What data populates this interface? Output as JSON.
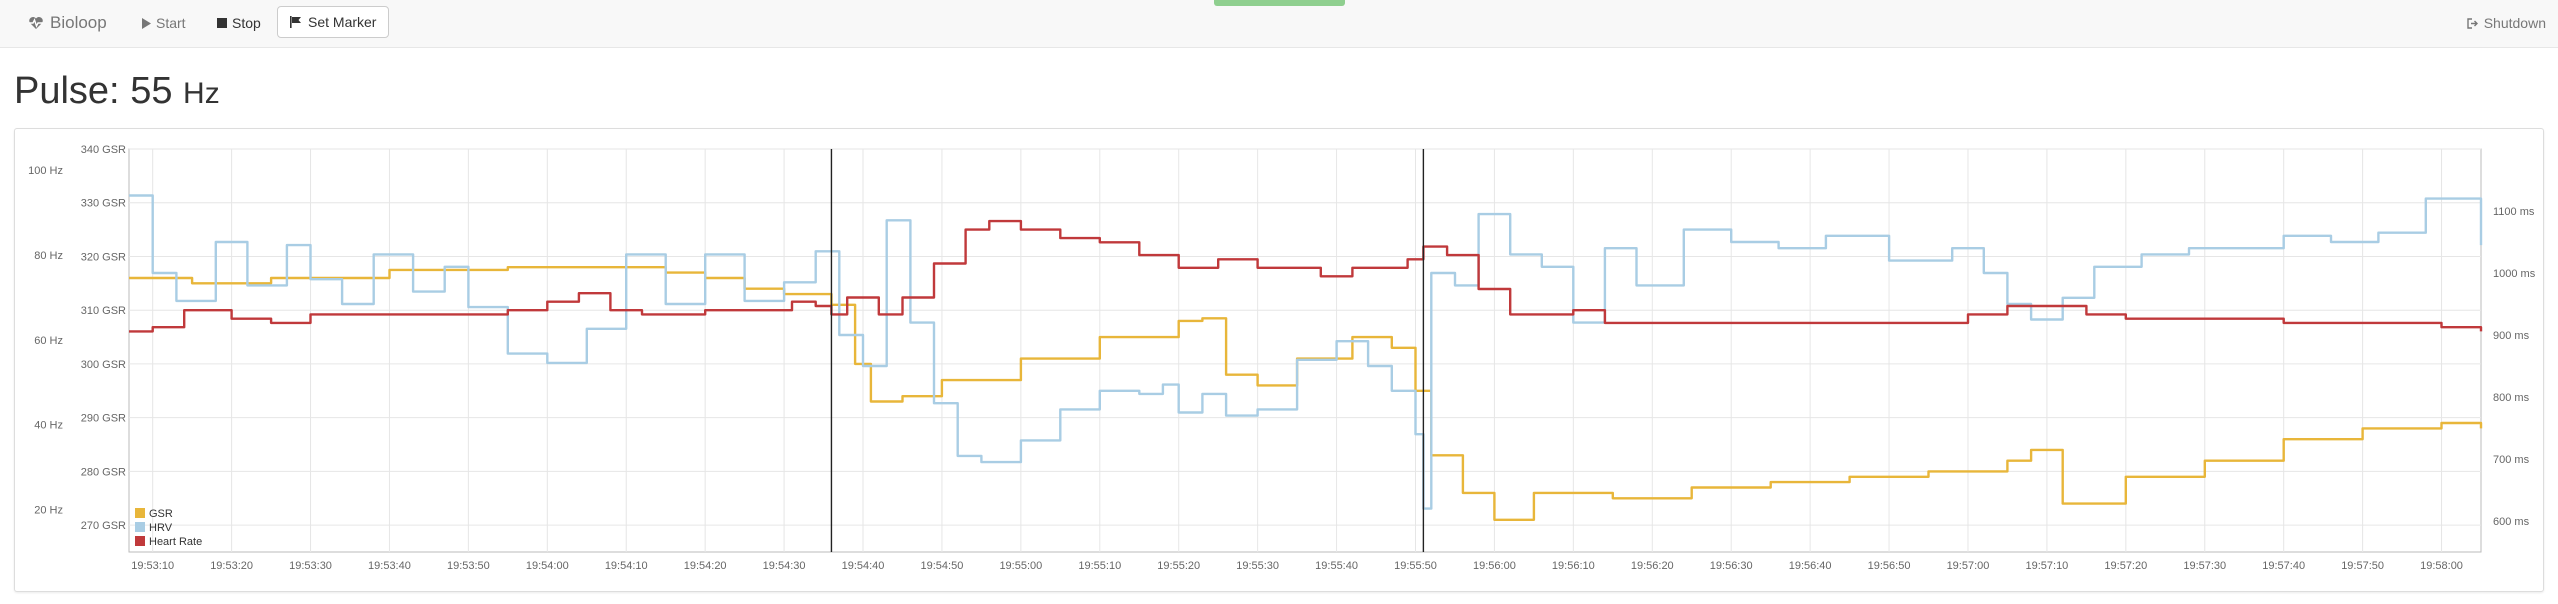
{
  "nav": {
    "brand": "Bioloop",
    "start_label": "Start",
    "stop_label": "Stop",
    "marker_label": "Set Marker",
    "shutdown_label": "Shutdown"
  },
  "pulse": {
    "label": "Pulse:",
    "value": "55",
    "unit": "Hz"
  },
  "colors": {
    "gsr": "#e8b63a",
    "hrv": "#a9cde4",
    "heart_rate": "#c0393b",
    "grid": "#e6e6e6",
    "marker": "#222222"
  },
  "chart_data": {
    "type": "line",
    "x_ticks": [
      "19:53:10",
      "19:53:20",
      "19:53:30",
      "19:53:40",
      "19:53:50",
      "19:54:00",
      "19:54:10",
      "19:54:20",
      "19:54:30",
      "19:54:40",
      "19:54:50",
      "19:55:00",
      "19:55:10",
      "19:55:20",
      "19:55:30",
      "19:55:40",
      "19:55:50",
      "19:56:00",
      "19:56:10",
      "19:56:20",
      "19:56:30",
      "19:56:40",
      "19:56:50",
      "19:57:00",
      "19:57:10",
      "19:57:20",
      "19:57:30",
      "19:57:40",
      "19:57:50",
      "19:58:00"
    ],
    "x_range": [
      "19:53:07",
      "19:58:05"
    ],
    "y_left_outer": {
      "ticks": [
        "100 Hz",
        "80 Hz",
        "60 Hz",
        "40 Hz",
        "20 Hz"
      ],
      "values": [
        100,
        80,
        60,
        40,
        20
      ],
      "range": [
        10,
        105
      ]
    },
    "y_left_inner": {
      "ticks": [
        "340 GSR",
        "330 GSR",
        "320 GSR",
        "310 GSR",
        "300 GSR",
        "290 GSR",
        "280 GSR",
        "270 GSR"
      ],
      "values": [
        340,
        330,
        320,
        310,
        300,
        290,
        280,
        270
      ],
      "range": [
        265,
        340
      ]
    },
    "y_right": {
      "ticks": [
        "1100 ms",
        "1000 ms",
        "900 ms",
        "800 ms",
        "700 ms",
        "600 ms"
      ],
      "values": [
        1100,
        1000,
        900,
        800,
        700,
        600
      ],
      "range": [
        550,
        1200
      ]
    },
    "markers": [
      "19:54:36",
      "19:55:51"
    ],
    "legend": [
      "GSR",
      "HRV",
      "Heart Rate"
    ],
    "legend_position": "bottom-left",
    "grid": true,
    "series": [
      {
        "name": "GSR",
        "axis": "gsr",
        "points": [
          [
            "19:53:07",
            316
          ],
          [
            "19:53:15",
            315
          ],
          [
            "19:53:25",
            316
          ],
          [
            "19:53:40",
            317.5
          ],
          [
            "19:53:55",
            318
          ],
          [
            "19:54:10",
            318
          ],
          [
            "19:54:15",
            317
          ],
          [
            "19:54:20",
            316
          ],
          [
            "19:54:25",
            314
          ],
          [
            "19:54:30",
            313
          ],
          [
            "19:54:36",
            311
          ],
          [
            "19:54:39",
            300
          ],
          [
            "19:54:41",
            293
          ],
          [
            "19:54:45",
            294
          ],
          [
            "19:54:50",
            297
          ],
          [
            "19:55:00",
            301
          ],
          [
            "19:55:10",
            305
          ],
          [
            "19:55:20",
            308
          ],
          [
            "19:55:23",
            308.5
          ],
          [
            "19:55:26",
            298
          ],
          [
            "19:55:30",
            296
          ],
          [
            "19:55:35",
            301
          ],
          [
            "19:55:42",
            305
          ],
          [
            "19:55:47",
            303
          ],
          [
            "19:55:50",
            295
          ],
          [
            "19:55:52",
            283
          ],
          [
            "19:55:56",
            276
          ],
          [
            "19:56:00",
            271
          ],
          [
            "19:56:05",
            276
          ],
          [
            "19:56:15",
            275
          ],
          [
            "19:56:25",
            277
          ],
          [
            "19:56:35",
            278
          ],
          [
            "19:56:45",
            279
          ],
          [
            "19:56:55",
            280
          ],
          [
            "19:57:05",
            282
          ],
          [
            "19:57:08",
            284
          ],
          [
            "19:57:12",
            274
          ],
          [
            "19:57:20",
            279
          ],
          [
            "19:57:30",
            282
          ],
          [
            "19:57:40",
            286
          ],
          [
            "19:57:50",
            288
          ],
          [
            "19:58:00",
            289
          ],
          [
            "19:58:05",
            288
          ]
        ]
      },
      {
        "name": "HRV",
        "axis": "ms",
        "points": [
          [
            "19:53:07",
            1125
          ],
          [
            "19:53:10",
            1000
          ],
          [
            "19:53:13",
            955
          ],
          [
            "19:53:18",
            1050
          ],
          [
            "19:53:22",
            980
          ],
          [
            "19:53:27",
            1045
          ],
          [
            "19:53:30",
            990
          ],
          [
            "19:53:34",
            950
          ],
          [
            "19:53:38",
            1030
          ],
          [
            "19:53:43",
            970
          ],
          [
            "19:53:47",
            1010
          ],
          [
            "19:53:50",
            945
          ],
          [
            "19:53:55",
            870
          ],
          [
            "19:54:00",
            855
          ],
          [
            "19:54:05",
            910
          ],
          [
            "19:54:10",
            1030
          ],
          [
            "19:54:15",
            950
          ],
          [
            "19:54:20",
            1030
          ],
          [
            "19:54:25",
            955
          ],
          [
            "19:54:30",
            985
          ],
          [
            "19:54:34",
            1035
          ],
          [
            "19:54:37",
            900
          ],
          [
            "19:54:40",
            850
          ],
          [
            "19:54:43",
            1085
          ],
          [
            "19:54:46",
            920
          ],
          [
            "19:54:49",
            790
          ],
          [
            "19:54:52",
            705
          ],
          [
            "19:54:55",
            695
          ],
          [
            "19:55:00",
            730
          ],
          [
            "19:55:05",
            780
          ],
          [
            "19:55:10",
            810
          ],
          [
            "19:55:15",
            805
          ],
          [
            "19:55:18",
            820
          ],
          [
            "19:55:20",
            775
          ],
          [
            "19:55:23",
            805
          ],
          [
            "19:55:26",
            770
          ],
          [
            "19:55:30",
            780
          ],
          [
            "19:55:35",
            860
          ],
          [
            "19:55:40",
            890
          ],
          [
            "19:55:44",
            850
          ],
          [
            "19:55:47",
            810
          ],
          [
            "19:55:50",
            740
          ],
          [
            "19:55:51",
            620
          ],
          [
            "19:55:52",
            1000
          ],
          [
            "19:55:55",
            980
          ],
          [
            "19:55:58",
            1095
          ],
          [
            "19:56:02",
            1030
          ],
          [
            "19:56:06",
            1010
          ],
          [
            "19:56:10",
            920
          ],
          [
            "19:56:14",
            1040
          ],
          [
            "19:56:18",
            980
          ],
          [
            "19:56:24",
            1070
          ],
          [
            "19:56:30",
            1050
          ],
          [
            "19:56:36",
            1040
          ],
          [
            "19:56:42",
            1060
          ],
          [
            "19:56:50",
            1020
          ],
          [
            "19:56:58",
            1040
          ],
          [
            "19:57:02",
            1000
          ],
          [
            "19:57:05",
            950
          ],
          [
            "19:57:08",
            925
          ],
          [
            "19:57:12",
            960
          ],
          [
            "19:57:16",
            1010
          ],
          [
            "19:57:22",
            1030
          ],
          [
            "19:57:28",
            1040
          ],
          [
            "19:57:34",
            1040
          ],
          [
            "19:57:40",
            1060
          ],
          [
            "19:57:46",
            1050
          ],
          [
            "19:57:52",
            1065
          ],
          [
            "19:57:58",
            1120
          ],
          [
            "19:58:05",
            1045
          ]
        ]
      },
      {
        "name": "Heart Rate",
        "axis": "hz",
        "points": [
          [
            "19:53:07",
            62
          ],
          [
            "19:53:10",
            63
          ],
          [
            "19:53:14",
            67
          ],
          [
            "19:53:20",
            65
          ],
          [
            "19:53:25",
            64
          ],
          [
            "19:53:30",
            66
          ],
          [
            "19:53:40",
            66
          ],
          [
            "19:53:50",
            66
          ],
          [
            "19:53:55",
            67
          ],
          [
            "19:54:00",
            69
          ],
          [
            "19:54:04",
            71
          ],
          [
            "19:54:08",
            67
          ],
          [
            "19:54:12",
            66
          ],
          [
            "19:54:20",
            67
          ],
          [
            "19:54:28",
            67
          ],
          [
            "19:54:31",
            69
          ],
          [
            "19:54:34",
            68
          ],
          [
            "19:54:36",
            66
          ],
          [
            "19:54:38",
            70
          ],
          [
            "19:54:42",
            66
          ],
          [
            "19:54:45",
            70
          ],
          [
            "19:54:49",
            78
          ],
          [
            "19:54:53",
            86
          ],
          [
            "19:54:56",
            88
          ],
          [
            "19:55:00",
            86
          ],
          [
            "19:55:05",
            84
          ],
          [
            "19:55:10",
            83
          ],
          [
            "19:55:15",
            80
          ],
          [
            "19:55:20",
            77
          ],
          [
            "19:55:25",
            79
          ],
          [
            "19:55:30",
            77
          ],
          [
            "19:55:38",
            75
          ],
          [
            "19:55:42",
            77
          ],
          [
            "19:55:46",
            77
          ],
          [
            "19:55:49",
            79
          ],
          [
            "19:55:51",
            82
          ],
          [
            "19:55:54",
            80
          ],
          [
            "19:55:58",
            72
          ],
          [
            "19:56:02",
            66
          ],
          [
            "19:56:06",
            66
          ],
          [
            "19:56:10",
            67
          ],
          [
            "19:56:14",
            64
          ],
          [
            "19:56:20",
            64
          ],
          [
            "19:56:30",
            64
          ],
          [
            "19:56:40",
            64
          ],
          [
            "19:56:50",
            64
          ],
          [
            "19:57:00",
            66
          ],
          [
            "19:57:05",
            68
          ],
          [
            "19:57:10",
            68
          ],
          [
            "19:57:15",
            66
          ],
          [
            "19:57:20",
            65
          ],
          [
            "19:57:30",
            65
          ],
          [
            "19:57:40",
            64
          ],
          [
            "19:57:50",
            64
          ],
          [
            "19:58:00",
            63
          ],
          [
            "19:58:05",
            62
          ]
        ]
      }
    ]
  }
}
